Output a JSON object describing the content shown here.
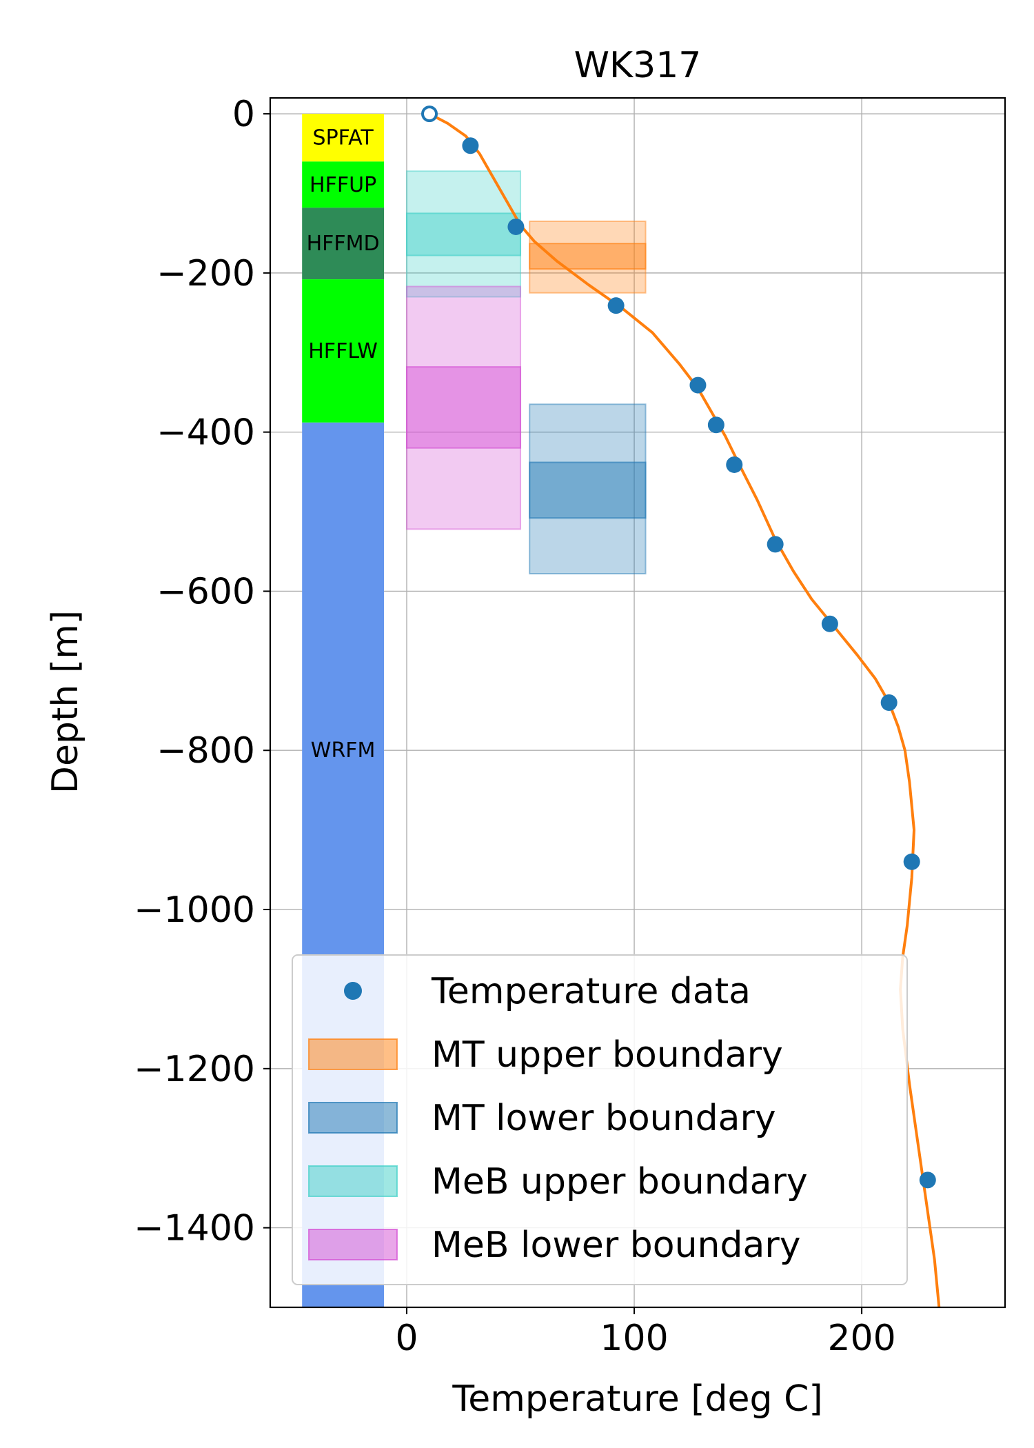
{
  "chart_data": {
    "type": "scatter",
    "title": "WK317",
    "xlabel": "Temperature [deg C]",
    "ylabel": "Depth [m]",
    "xlim": [
      -60,
      263
    ],
    "ylim": [
      -1500,
      20
    ],
    "xticks": [
      0,
      100,
      200
    ],
    "xtick_labels": [
      "0",
      "100",
      "200"
    ],
    "yticks": [
      0,
      -200,
      -400,
      -600,
      -800,
      -1000,
      -1200,
      -1400
    ],
    "ytick_labels": [
      "0",
      "−200",
      "−400",
      "−600",
      "−800",
      "−1000",
      "−1200",
      "−1400"
    ],
    "grid": true,
    "legend_position": "lower-right",
    "legend": [
      {
        "label": "Temperature data",
        "kind": "marker",
        "color": "#1f77b4"
      },
      {
        "label": "MT upper boundary",
        "kind": "patch",
        "color": "#ff7f0e"
      },
      {
        "label": "MT lower boundary",
        "kind": "patch",
        "color": "#1f77b4"
      },
      {
        "label": "MeB upper boundary",
        "kind": "patch",
        "color": "#40d0c8"
      },
      {
        "label": "MeB lower boundary",
        "kind": "patch",
        "color": "#d44fd4"
      }
    ],
    "formations": [
      {
        "name": "SPFAT",
        "top": 0,
        "bottom": -60,
        "color": "#ffff00"
      },
      {
        "name": "HFFUP",
        "top": -60,
        "bottom": -118,
        "color": "#00ff00"
      },
      {
        "name": "HFFMD",
        "top": -118,
        "bottom": -208,
        "color": "#2e8b57"
      },
      {
        "name": "HFFLW",
        "top": -208,
        "bottom": -388,
        "color": "#00ff00"
      },
      {
        "name": "WRFM",
        "top": -388,
        "bottom": -1500,
        "color": "#6495ed"
      }
    ],
    "formation_x_range": [
      -46,
      -10
    ],
    "temperature_points": {
      "x": [
        10,
        28,
        48,
        92,
        128,
        136,
        144,
        162,
        186,
        212,
        222,
        229
      ],
      "y": [
        0,
        -40,
        -142,
        -241,
        -341,
        -391,
        -441,
        -541,
        -641,
        -740,
        -940,
        -1340
      ],
      "hollow_first": true,
      "color": "#1f77b4"
    },
    "temperature_curve": {
      "x": [
        10,
        18,
        26,
        32,
        38,
        44,
        50,
        56,
        66,
        80,
        95,
        108,
        120,
        128,
        134,
        140,
        146,
        154,
        162,
        170,
        178,
        188,
        198,
        206,
        212,
        216,
        219,
        221,
        223,
        222,
        220,
        218,
        217,
        218,
        221,
        225,
        229,
        232,
        234
      ],
      "y": [
        0,
        -12,
        -28,
        -50,
        -80,
        -110,
        -140,
        -160,
        -185,
        -215,
        -245,
        -275,
        -315,
        -345,
        -375,
        -405,
        -440,
        -485,
        -535,
        -575,
        -610,
        -645,
        -680,
        -710,
        -740,
        -770,
        -800,
        -840,
        -900,
        -960,
        -1020,
        -1060,
        -1100,
        -1150,
        -1220,
        -1300,
        -1380,
        -1440,
        -1500
      ],
      "color": "#ff7f0e"
    },
    "boundary_boxes": [
      {
        "series": "MT upper boundary",
        "x": [
          54,
          105
        ],
        "outer": [
          -135,
          -225
        ],
        "inner": [
          -163,
          -195
        ],
        "color": "#ff7f0e"
      },
      {
        "series": "MT lower boundary",
        "x": [
          54,
          105
        ],
        "outer": [
          -365,
          -578
        ],
        "inner": [
          -438,
          -508
        ],
        "color": "#1f77b4"
      },
      {
        "series": "MeB upper boundary",
        "x": [
          0,
          50
        ],
        "outer": [
          -72,
          -230
        ],
        "inner": [
          -125,
          -178
        ],
        "color": "#40d0c8"
      },
      {
        "series": "MeB lower boundary",
        "x": [
          0,
          50
        ],
        "outer": [
          -217,
          -522
        ],
        "inner": [
          -318,
          -420
        ],
        "color": "#d44fd4"
      }
    ]
  }
}
